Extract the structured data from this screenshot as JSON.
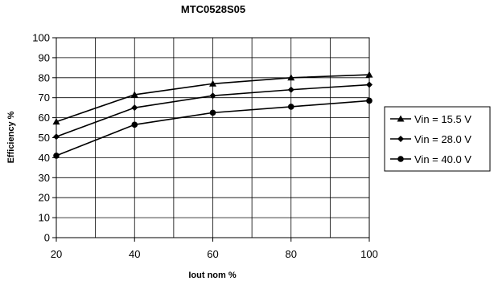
{
  "chart_data": {
    "type": "line",
    "title": "MTC0528S05",
    "xlabel": "Iout nom %",
    "ylabel": "Efficiency %",
    "x": [
      20,
      40,
      60,
      80,
      100
    ],
    "xlim": [
      20,
      100
    ],
    "ylim": [
      0,
      100
    ],
    "x_ticks": [
      "20",
      "40",
      "60",
      "80",
      "100"
    ],
    "y_ticks": [
      "0",
      "10",
      "20",
      "30",
      "40",
      "50",
      "60",
      "70",
      "80",
      "90",
      "100"
    ],
    "grid": true,
    "legend_position": "right",
    "line_color": "#000000",
    "series": [
      {
        "name": "Vin = 15.5 V",
        "marker": "triangle",
        "values": [
          58,
          71.5,
          77,
          80,
          81.5
        ]
      },
      {
        "name": "Vin = 28.0 V",
        "marker": "diamond",
        "values": [
          50.5,
          65,
          71,
          74,
          76.5
        ]
      },
      {
        "name": "Vin = 40.0 V",
        "marker": "circle",
        "values": [
          41,
          56.5,
          62.5,
          65.5,
          68.5
        ]
      }
    ]
  }
}
